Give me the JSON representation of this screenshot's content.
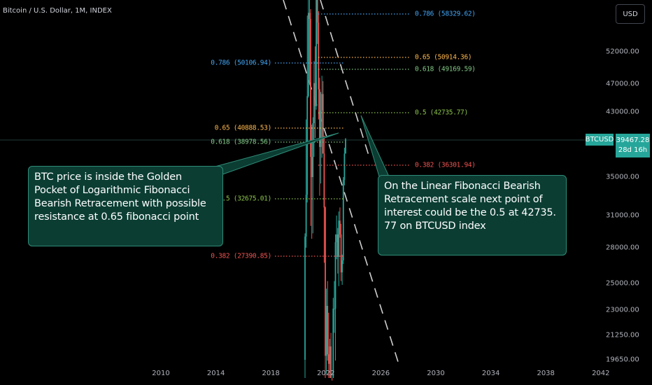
{
  "header": {
    "title": "Bitcoin / U.S. Dollar, 1M, INDEX"
  },
  "currency_button": {
    "label": "USD"
  },
  "price_tag": {
    "symbol": "BTCUSD",
    "price": "39467.28",
    "countdown": "28d 16h"
  },
  "annotations": {
    "left": "BTC price  is inside the Golden\nPocket of Logarithmic Fibonacci\nBearish Retracement with possible\nresistance at 0.65 fibonacci point",
    "right": "On the Linear Fibonacci Bearish\nRetracement scale  next point of\ninterest could be the 0.5 at 42735.\n77 on BTCUSD index"
  },
  "colors": {
    "background": "#000000",
    "up": "#26a69a",
    "down": "#ef5350",
    "fib_0786": "#42a5f5",
    "fib_065": "#ffb74d",
    "fib_0618": "#81c784",
    "fib_05": "#8bc34a",
    "fib_0382": "#ef5350",
    "trendline": "#cfcfcf",
    "callout_fill": "#0b3d33",
    "callout_border": "#2f8c78"
  },
  "chart_data": {
    "type": "candlestick",
    "title": "Bitcoin / U.S. Dollar, 1M, INDEX",
    "y_scale": "log",
    "yticks": [
      "52000.00",
      "47000.00",
      "43000.00",
      "35000.00",
      "31000.00",
      "28000.00",
      "25000.00",
      "23000.00",
      "21250.00",
      "19650.00"
    ],
    "xticks": [
      "2010",
      "2014",
      "2018",
      "2022",
      "2026",
      "2030",
      "2034",
      "2038",
      "2042"
    ],
    "fibonacci_log": [
      {
        "label": "0.786 (50106.94)",
        "level": 0.786,
        "value": 50106.94,
        "color": "#42a5f5"
      },
      {
        "label": "0.65 (40888.53)",
        "level": 0.65,
        "value": 40888.53,
        "color": "#ffb74d"
      },
      {
        "label": "0.618 (38978.56)",
        "level": 0.618,
        "value": 38978.56,
        "color": "#81c784"
      },
      {
        "label": "0.5 (32675.01)",
        "level": 0.5,
        "value": 32675.01,
        "color": "#8bc34a"
      },
      {
        "label": "0.382 (27390.85)",
        "level": 0.382,
        "value": 27390.85,
        "color": "#ef5350"
      }
    ],
    "fibonacci_linear": [
      {
        "label": "0.786 (58329.62)",
        "level": 0.786,
        "value": 58329.62,
        "color": "#42a5f5"
      },
      {
        "label": "0.65 (50914.36)",
        "level": 0.65,
        "value": 50914.36,
        "color": "#ffb74d"
      },
      {
        "label": "0.618 (49169.59)",
        "level": 0.618,
        "value": 49169.59,
        "color": "#81c784"
      },
      {
        "label": "0.5 (42735.77)",
        "level": 0.5,
        "value": 42735.77,
        "color": "#8bc34a"
      },
      {
        "label": "0.382 (36301.94)",
        "level": 0.382,
        "value": 36301.94,
        "color": "#ef5350"
      }
    ],
    "last_price": 39467.28,
    "candles": [
      {
        "date": "2020-12",
        "open": 19650,
        "high": 29300,
        "low": 17500,
        "close": 29000
      },
      {
        "date": "2021-01",
        "open": 29000,
        "high": 42000,
        "low": 28000,
        "close": 33100
      },
      {
        "date": "2021-02",
        "open": 33100,
        "high": 58300,
        "low": 32300,
        "close": 45200
      },
      {
        "date": "2021-03",
        "open": 45200,
        "high": 61700,
        "low": 45000,
        "close": 58800
      },
      {
        "date": "2021-04",
        "open": 58800,
        "high": 64800,
        "low": 47000,
        "close": 57700
      },
      {
        "date": "2021-05",
        "open": 57700,
        "high": 59500,
        "low": 30000,
        "close": 37300
      },
      {
        "date": "2021-06",
        "open": 37300,
        "high": 41300,
        "low": 28800,
        "close": 35000
      },
      {
        "date": "2021-07",
        "open": 35000,
        "high": 42300,
        "low": 29300,
        "close": 41500
      },
      {
        "date": "2021-08",
        "open": 41500,
        "high": 50500,
        "low": 37300,
        "close": 47100
      },
      {
        "date": "2021-09",
        "open": 47100,
        "high": 52900,
        "low": 39600,
        "close": 43800
      },
      {
        "date": "2021-10",
        "open": 43800,
        "high": 67000,
        "low": 43300,
        "close": 61300
      },
      {
        "date": "2021-11",
        "open": 61300,
        "high": 69000,
        "low": 53300,
        "close": 57000
      },
      {
        "date": "2021-12",
        "open": 57000,
        "high": 59100,
        "low": 42000,
        "close": 46200
      },
      {
        "date": "2022-01",
        "open": 46200,
        "high": 47900,
        "low": 33000,
        "close": 38500
      },
      {
        "date": "2022-02",
        "open": 38500,
        "high": 45800,
        "low": 34300,
        "close": 43200
      },
      {
        "date": "2022-03",
        "open": 43200,
        "high": 48200,
        "low": 37200,
        "close": 45500
      },
      {
        "date": "2022-04",
        "open": 45500,
        "high": 47400,
        "low": 37700,
        "close": 37700
      },
      {
        "date": "2022-05",
        "open": 37700,
        "high": 39900,
        "low": 26700,
        "close": 31800
      },
      {
        "date": "2022-06",
        "open": 31800,
        "high": 31900,
        "low": 17600,
        "close": 19900
      },
      {
        "date": "2022-07",
        "open": 19900,
        "high": 24600,
        "low": 18800,
        "close": 23300
      },
      {
        "date": "2022-08",
        "open": 23300,
        "high": 25200,
        "low": 19600,
        "close": 20000
      },
      {
        "date": "2022-09",
        "open": 20000,
        "high": 22800,
        "low": 18200,
        "close": 19400
      },
      {
        "date": "2022-10",
        "open": 19400,
        "high": 21000,
        "low": 18200,
        "close": 20500
      },
      {
        "date": "2022-11",
        "open": 20500,
        "high": 21400,
        "low": 15500,
        "close": 17200
      },
      {
        "date": "2022-12",
        "open": 17200,
        "high": 18400,
        "low": 16300,
        "close": 16500
      },
      {
        "date": "2023-01",
        "open": 16500,
        "high": 23900,
        "low": 16500,
        "close": 23100
      },
      {
        "date": "2023-02",
        "open": 23100,
        "high": 25200,
        "low": 21400,
        "close": 23100
      },
      {
        "date": "2023-03",
        "open": 23100,
        "high": 29200,
        "low": 19600,
        "close": 28500
      },
      {
        "date": "2023-04",
        "open": 28500,
        "high": 31000,
        "low": 27000,
        "close": 29200
      },
      {
        "date": "2023-05",
        "open": 29200,
        "high": 29800,
        "low": 25800,
        "close": 27200
      },
      {
        "date": "2023-06",
        "open": 27200,
        "high": 31400,
        "low": 24800,
        "close": 30500
      },
      {
        "date": "2023-07",
        "open": 30500,
        "high": 31800,
        "low": 28900,
        "close": 29200
      },
      {
        "date": "2023-08",
        "open": 29200,
        "high": 30200,
        "low": 25200,
        "close": 25900
      },
      {
        "date": "2023-09",
        "open": 25900,
        "high": 27400,
        "low": 24900,
        "close": 26900
      },
      {
        "date": "2023-10",
        "open": 26900,
        "high": 35000,
        "low": 26600,
        "close": 34700
      },
      {
        "date": "2023-11",
        "open": 34700,
        "high": 38400,
        "low": 34100,
        "close": 37700
      },
      {
        "date": "2023-12",
        "open": 37700,
        "high": 39600,
        "low": 37700,
        "close": 39467.28
      }
    ]
  }
}
